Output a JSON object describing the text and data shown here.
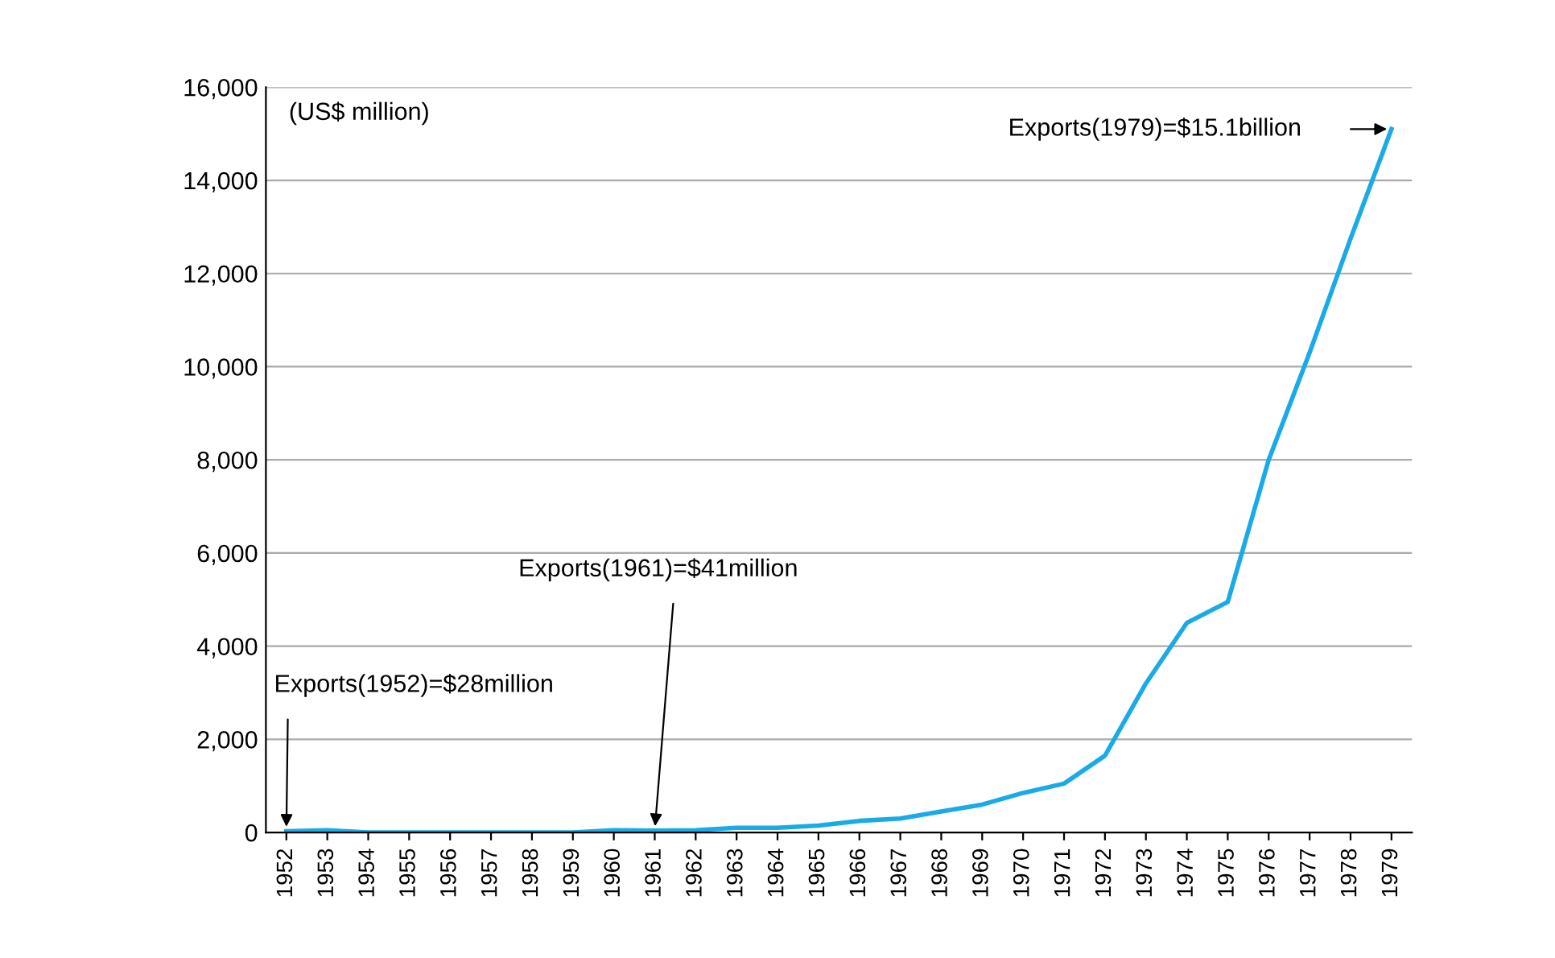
{
  "chart_data": {
    "type": "line",
    "ylabel": "(US$ million)",
    "categories": [
      "1952",
      "1953",
      "1954",
      "1955",
      "1956",
      "1957",
      "1958",
      "1959",
      "1960",
      "1961",
      "1962",
      "1963",
      "1964",
      "1965",
      "1966",
      "1967",
      "1968",
      "1969",
      "1970",
      "1971",
      "1972",
      "1973",
      "1974",
      "1975",
      "1976",
      "1977",
      "1978",
      "1979"
    ],
    "series": [
      {
        "color": "#1aabe6",
        "values": [
          28,
          50,
          0,
          0,
          0,
          0,
          0,
          0,
          50,
          41,
          50,
          100,
          100,
          150,
          250,
          300,
          450,
          600,
          850,
          1050,
          1650,
          3200,
          4500,
          4950,
          8000,
          10300,
          12750,
          15100
        ]
      }
    ],
    "ylim": [
      0,
      16000
    ],
    "yticks": [
      {
        "value": 0,
        "label": "0"
      },
      {
        "value": 2000,
        "label": "2,000"
      },
      {
        "value": 4000,
        "label": "4,000"
      },
      {
        "value": 6000,
        "label": "6,000"
      },
      {
        "value": 8000,
        "label": "8,000"
      },
      {
        "value": 10000,
        "label": "10,000"
      },
      {
        "value": 12000,
        "label": "12,000"
      },
      {
        "value": 14000,
        "label": "14,000"
      },
      {
        "value": 16000,
        "label": "16,000"
      }
    ],
    "grid": "y",
    "legend": false,
    "marker": "none",
    "line_style": "solid",
    "annotations": [
      {
        "text": "Exports(1952)=$28million",
        "x": "1952",
        "y": 28
      },
      {
        "text": "Exports(1961)=$41million",
        "x": "1961",
        "y": 41
      },
      "Exports(1979)=$15.1billion"
    ]
  }
}
